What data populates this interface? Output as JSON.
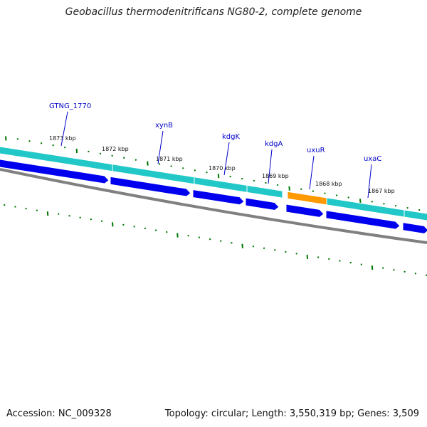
{
  "title": "Geobacillus thermodenitrificans NG80-2, complete genome",
  "footer": {
    "accession": "Accession: NC_009328",
    "summary": "Topology: circular; Length: 3,550,319 bp; Genes: 3,509"
  },
  "colors": {
    "backbone": "#808080",
    "cds": "#0000ee",
    "gene_track": "#22c8c8",
    "highlight_gene": "#ff9900",
    "gene_label": "#0000cc",
    "tick": "#007700"
  },
  "kbp_ticks": [
    {
      "pos": 1873,
      "label": "1873 kbp"
    },
    {
      "pos": 1872,
      "label": "1872 kbp"
    },
    {
      "pos": 1871,
      "label": "1871 kbp"
    },
    {
      "pos": 1870,
      "label": "1870 kbp"
    },
    {
      "pos": 1869,
      "label": "1869 kbp"
    },
    {
      "pos": 1868,
      "label": "1868 kbp"
    },
    {
      "pos": 1867,
      "label": "1867 kbp"
    }
  ],
  "gene_labels": [
    {
      "name": "GTNG_1770"
    },
    {
      "name": "xynB"
    },
    {
      "name": "kdgK"
    },
    {
      "name": "kdgA"
    },
    {
      "name": "uxuR"
    },
    {
      "name": "uxaC"
    }
  ]
}
